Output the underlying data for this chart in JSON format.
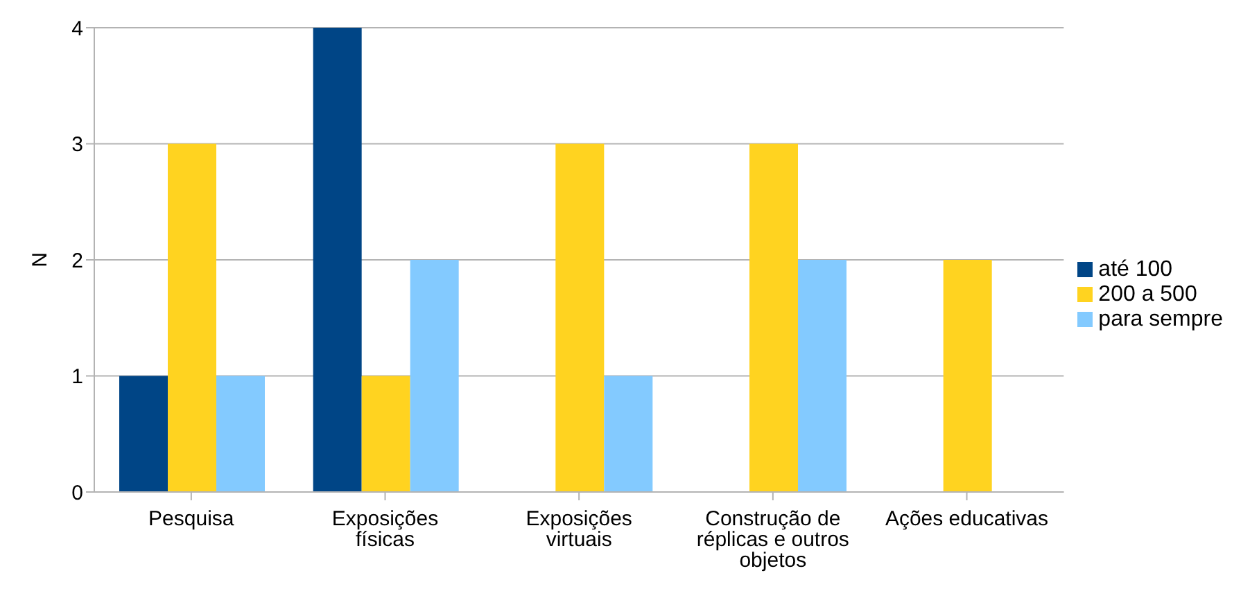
{
  "chart_data": {
    "type": "bar",
    "ylabel": "N",
    "categories": [
      "Pesquisa",
      "Exposições físicas",
      "Exposições virtuais",
      "Construção de réplicas e outros objetos",
      "Ações educativas"
    ],
    "series": [
      {
        "name": "até 100",
        "color": "#004586",
        "values": [
          1,
          4,
          0,
          0,
          0
        ]
      },
      {
        "name": "200 a 500",
        "color": "#ffd320",
        "values": [
          3,
          1,
          3,
          3,
          2
        ]
      },
      {
        "name": "para sempre",
        "color": "#83caff",
        "values": [
          1,
          2,
          1,
          2,
          0
        ]
      }
    ],
    "ylim": [
      0,
      4
    ],
    "yticks": [
      0,
      1,
      2,
      3,
      4
    ],
    "grid": "y",
    "legend": "right"
  }
}
